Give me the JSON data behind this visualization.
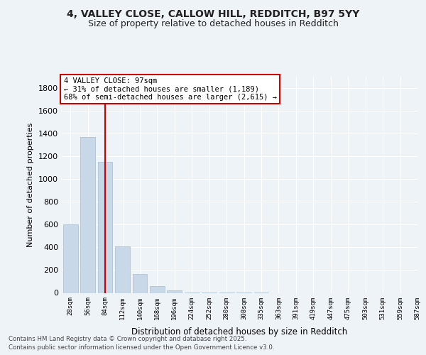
{
  "title_line1": "4, VALLEY CLOSE, CALLOW HILL, REDDITCH, B97 5YY",
  "title_line2": "Size of property relative to detached houses in Redditch",
  "xlabel": "Distribution of detached houses by size in Redditch",
  "ylabel": "Number of detached properties",
  "bins": [
    "28sqm",
    "56sqm",
    "84sqm",
    "112sqm",
    "140sqm",
    "168sqm",
    "196sqm",
    "224sqm",
    "252sqm",
    "280sqm",
    "308sqm",
    "335sqm",
    "363sqm",
    "391sqm",
    "419sqm",
    "447sqm",
    "475sqm",
    "503sqm",
    "531sqm",
    "559sqm",
    "587sqm"
  ],
  "bar_values": [
    600,
    1370,
    1150,
    410,
    165,
    60,
    20,
    5,
    3,
    2,
    1,
    1,
    0,
    0,
    0,
    0,
    0,
    0,
    0,
    0
  ],
  "bar_color": "#c8d8e8",
  "bar_edge_color": "#a8bece",
  "vline_color": "#cc0000",
  "vline_x": 2.0,
  "annotation_text_line1": "4 VALLEY CLOSE: 97sqm",
  "annotation_text_line2": "← 31% of detached houses are smaller (1,189)",
  "annotation_text_line3": "68% of semi-detached houses are larger (2,615) →",
  "annotation_box_color": "#cc0000",
  "ylim": [
    0,
    1900
  ],
  "yticks": [
    0,
    200,
    400,
    600,
    800,
    1000,
    1200,
    1400,
    1600,
    1800
  ],
  "footer_line1": "Contains HM Land Registry data © Crown copyright and database right 2025.",
  "footer_line2": "Contains public sector information licensed under the Open Government Licence v3.0.",
  "bg_color": "#eef3f8",
  "grid_color": "#ffffff",
  "text_color": "#222222"
}
